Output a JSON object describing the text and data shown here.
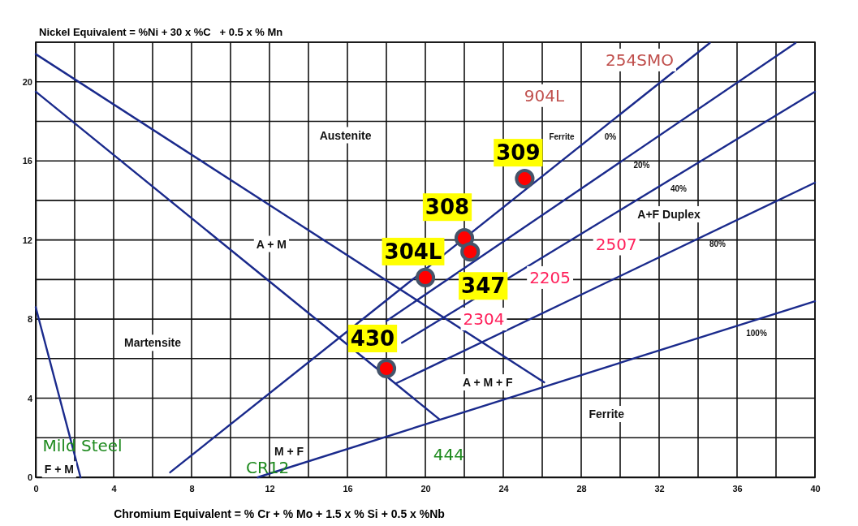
{
  "chart_data": {
    "type": "line",
    "xlabel": "Chromium Equivalent = % Cr + % Mo + 1.5 x % Si + 0.5 x %Nb",
    "ylabel": "Nickel Equivalent = %Ni + 30 x %C   + 0.5 x % Mn",
    "xlim": [
      0,
      40
    ],
    "ylim": [
      0,
      22
    ],
    "xticks": [
      0,
      {
        "value": 2,
        "label": null
      },
      4,
      {
        "value": 6,
        "label": null
      },
      8,
      {
        "value": 10,
        "label": null
      },
      12,
      {
        "value": 14,
        "label": null
      },
      16,
      {
        "value": 18,
        "label": null
      },
      20,
      {
        "value": 22,
        "label": null
      },
      24,
      {
        "value": 26,
        "label": null
      },
      28,
      {
        "value": 30,
        "label": null
      },
      32,
      {
        "value": 34,
        "label": null
      },
      36,
      {
        "value": 38,
        "label": null
      },
      40
    ],
    "yticks": [
      0,
      {
        "value": 2,
        "label": null
      },
      4,
      {
        "value": 6,
        "label": null
      },
      8,
      {
        "value": 10,
        "label": null
      },
      12,
      {
        "value": 14,
        "label": null
      },
      16,
      {
        "value": 18,
        "label": null
      },
      20,
      {
        "value": 22,
        "label": null
      }
    ],
    "grid": true,
    "line_style": "solid",
    "series": [
      {
        "color": "#1a2a8c",
        "x": [
          0,
          26.1
        ],
        "values": [
          21.4,
          4.8
        ]
      },
      {
        "color": "#1a2a8c",
        "x": [
          0,
          20.7
        ],
        "values": [
          19.5,
          2.95
        ]
      },
      {
        "color": "#1a2a8c",
        "x": [
          0,
          2.3
        ],
        "values": [
          8.6,
          0
        ]
      },
      {
        "color": "#1a2a8c",
        "x": [
          6.9,
          34.6
        ],
        "values": [
          0.25,
          21.96
        ]
      },
      {
        "color": "#1a2a8c",
        "x": [
          18.0,
          39.0
        ],
        "values": [
          7.9,
          21.96
        ]
      },
      {
        "color": "#1a2a8c",
        "x": [
          18.8,
          40
        ],
        "values": [
          6.8,
          19.5
        ]
      },
      {
        "color": "#1a2a8c",
        "x": [
          18.5,
          40
        ],
        "values": [
          4.75,
          14.9
        ]
      },
      {
        "color": "#1a2a8c",
        "x": [
          11.4,
          40
        ],
        "values": [
          0,
          8.9
        ]
      },
      {
        "type": "scatter",
        "color": "#ff0000",
        "marker": "circle",
        "x": [
          25.1,
          22.0,
          22.3,
          20.0,
          18.0
        ],
        "values": [
          15.1,
          12.1,
          11.4,
          10.1,
          5.5
        ]
      }
    ],
    "annotations": [
      "Austenite",
      "A + M",
      "Martensite",
      "A + M + F",
      "Ferrite",
      "M + F",
      "F + M",
      "A+F Duplex",
      "Ferrite",
      "0%",
      "20%",
      "40%",
      "80%",
      "100%",
      "254SMO",
      "904L",
      "2507",
      "2205",
      "2304",
      "444",
      "Mild Steel",
      "CR12",
      {
        "text": "309",
        "x": 25.1,
        "y": 15.1
      },
      {
        "text": "308",
        "x": 22.0,
        "y": 12.1
      },
      {
        "text": "304L",
        "x": 20.0,
        "y": 10.1
      },
      {
        "text": "347",
        "x": 22.3,
        "y": 11.4
      },
      {
        "text": "430",
        "x": 18.0,
        "y": 5.5
      }
    ]
  }
}
